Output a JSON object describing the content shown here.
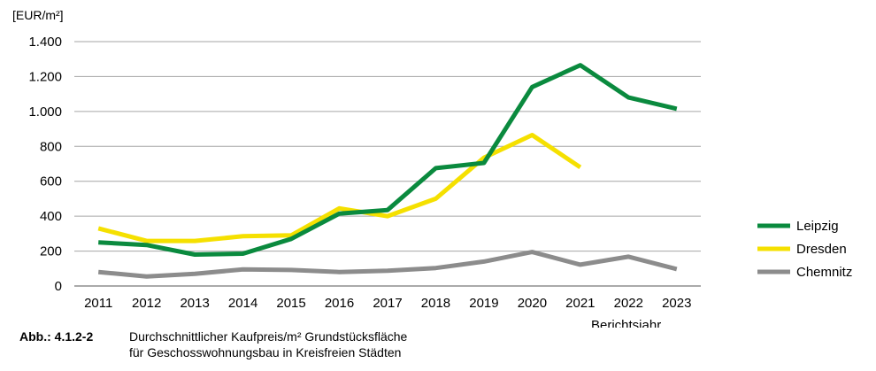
{
  "chart_data": {
    "type": "line",
    "ylabel": "[EUR/m²]",
    "xlabel": "Berichtsjahr",
    "x": [
      "2011",
      "2012",
      "2013",
      "2014",
      "2015",
      "2016",
      "2017",
      "2018",
      "2019",
      "2020",
      "2021",
      "2022",
      "2023"
    ],
    "ylim": [
      0,
      1400
    ],
    "yticks": [
      0,
      200,
      400,
      600,
      800,
      1000,
      1200,
      1400
    ],
    "ytick_labels": [
      "0",
      "200",
      "400",
      "600",
      "800",
      "1.000",
      "1.200",
      "1.400"
    ],
    "grid": true,
    "legend_position": "right",
    "series": [
      {
        "name": "Leipzig",
        "color": "#0a8a3e",
        "values": [
          250,
          235,
          180,
          185,
          270,
          415,
          435,
          675,
          705,
          1140,
          1265,
          1080,
          1015
        ]
      },
      {
        "name": "Dresden",
        "color": "#f5e000",
        "values": [
          330,
          258,
          258,
          285,
          290,
          445,
          400,
          500,
          735,
          865,
          680,
          null,
          null
        ]
      },
      {
        "name": "Chemnitz",
        "color": "#8c8c8c",
        "values": [
          80,
          55,
          70,
          95,
          92,
          80,
          87,
          103,
          140,
          195,
          122,
          168,
          97
        ]
      }
    ]
  },
  "caption": {
    "label": "Abb.:",
    "number": "4.1.2-2",
    "line1": "Durchschnittlicher Kaufpreis/m² Grundstücksfläche",
    "line2": "für Geschosswohnungsbau in Kreisfreien Städten"
  }
}
